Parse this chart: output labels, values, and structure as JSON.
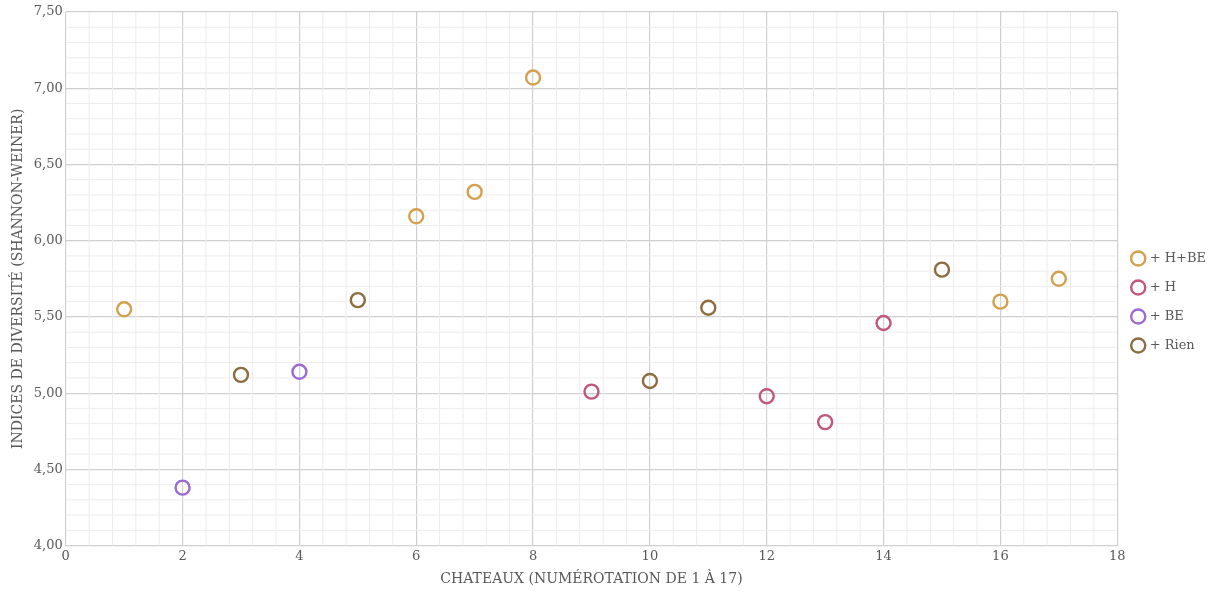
{
  "chart_data": {
    "type": "scatter",
    "xlabel": "CHATEAUX (NUMÉROTATION DE 1 À 17)",
    "ylabel": "INDICES DE DIVERSITÉ (SHANNON-WEINER)",
    "xlim": [
      0,
      18
    ],
    "xticks": [
      0,
      2,
      4,
      6,
      8,
      10,
      12,
      14,
      16,
      18
    ],
    "ylim": [
      4,
      7.5
    ],
    "yticks": [
      {
        "value": 4,
        "label": "4,00"
      },
      {
        "value": 4.5,
        "label": "4,50"
      },
      {
        "value": 5,
        "label": "5,00"
      },
      {
        "value": 5.5,
        "label": "5,50"
      },
      {
        "value": 6,
        "label": "6,00"
      },
      {
        "value": 6.5,
        "label": "6,50"
      },
      {
        "value": 7,
        "label": "7,00"
      },
      {
        "value": 7.5,
        "label": "7,50"
      }
    ],
    "grid": true,
    "legend": "right",
    "marker": "circle",
    "series": [
      {
        "name": "+ H+BE",
        "color": "#d4a04e",
        "x": [
          1,
          6,
          7,
          8,
          16,
          17
        ],
        "values": [
          5.55,
          6.16,
          6.32,
          7.07,
          5.6,
          5.75
        ]
      },
      {
        "name": "+ H",
        "color": "#c0587a",
        "x": [
          9,
          12,
          13,
          14
        ],
        "values": [
          5.01,
          4.98,
          4.81,
          5.46
        ]
      },
      {
        "name": "+ BE",
        "color": "#9b6bd1",
        "x": [
          2,
          4
        ],
        "values": [
          4.38,
          5.14
        ]
      },
      {
        "name": "+ Rien",
        "color": "#8c6d3f",
        "x": [
          3,
          5,
          10,
          11,
          15
        ],
        "values": [
          5.12,
          5.61,
          5.08,
          5.56,
          5.81
        ]
      }
    ]
  }
}
